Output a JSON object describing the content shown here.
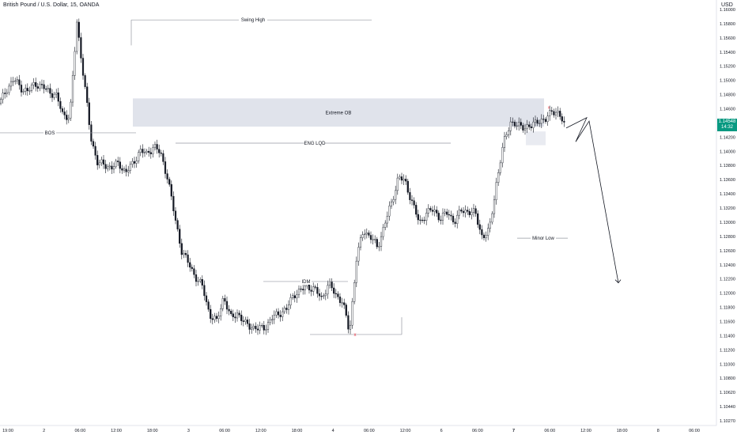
{
  "header": {
    "title": "British Pound / U.S. Dollar, 15, OANDA",
    "currency": "USD"
  },
  "chart_data": {
    "type": "candlestick",
    "ylim": [
      1.1027,
      1.1621
    ],
    "y_ticks": [
      "1.16000",
      "1.15800",
      "1.15600",
      "1.15400",
      "1.15200",
      "1.15000",
      "1.14800",
      "1.14600",
      "1.14400",
      "1.14200",
      "1.14000",
      "1.13800",
      "1.13600",
      "1.13400",
      "1.13200",
      "1.13000",
      "1.12800",
      "1.12600",
      "1.12400",
      "1.12200",
      "1.12000",
      "1.11800",
      "1.11600",
      "1.11400",
      "1.11200",
      "1.11000",
      "1.10800",
      "1.10620",
      "1.10440",
      "1.10270"
    ],
    "x_ticks": [
      "19:00",
      "2",
      "06:00",
      "12:00",
      "18:00",
      "3",
      "06:00",
      "12:00",
      "18:00",
      "4",
      "06:00",
      "12:00",
      "6",
      "06:00",
      "7",
      "06:00",
      "12:00",
      "18:00",
      "8",
      "06:00"
    ],
    "bold_x_ticks": [
      "7"
    ],
    "current_price": {
      "value": "1.14548",
      "countdown": "14:32"
    },
    "colors": {
      "up": "#089981",
      "candle": "#131722",
      "zone": "#e0e3eb",
      "marker": "#f23645",
      "line": "#9598a1"
    },
    "series_path": [
      1.1486,
      1.1508,
      1.152,
      1.1509,
      1.1502,
      1.1516,
      1.1509,
      1.1504,
      1.1497,
      1.147,
      1.1466,
      1.1605,
      1.152,
      1.1436,
      1.1398,
      1.1396,
      1.1393,
      1.1398,
      1.1386,
      1.1397,
      1.1418,
      1.1411,
      1.1425,
      1.1411,
      1.1378,
      1.132,
      1.1272,
      1.1252,
      1.1234,
      1.1218,
      1.1179,
      1.1168,
      1.1206,
      1.1173,
      1.1182,
      1.1165,
      1.1162,
      1.1157,
      1.1162,
      1.1174,
      1.1182,
      1.1186,
      1.1209,
      1.1213,
      1.1221,
      1.1215,
      1.1203,
      1.1223,
      1.1209,
      1.1197,
      1.1153,
      1.126,
      1.1302,
      1.1292,
      1.1276,
      1.131,
      1.134,
      1.138,
      1.137,
      1.1342,
      1.131,
      1.1328,
      1.133,
      1.132,
      1.1326,
      1.1315,
      1.1329,
      1.133,
      1.1325,
      1.1292,
      1.13,
      1.137,
      1.1425,
      1.146,
      1.1452,
      1.1453,
      1.1451,
      1.1463,
      1.1459,
      1.1478,
      1.1468,
      1.145
    ],
    "projection": [
      1.145,
      1.1465,
      1.143,
      1.146,
      1.1225
    ],
    "annotations": {
      "swing_high": "Swing High",
      "extreme_ob": "Extreme OB",
      "bos": "BOS",
      "eng_lqd": "ENG LQD",
      "idm": "IDM",
      "x_marker": "x",
      "minor_low": "Minor Low"
    }
  }
}
